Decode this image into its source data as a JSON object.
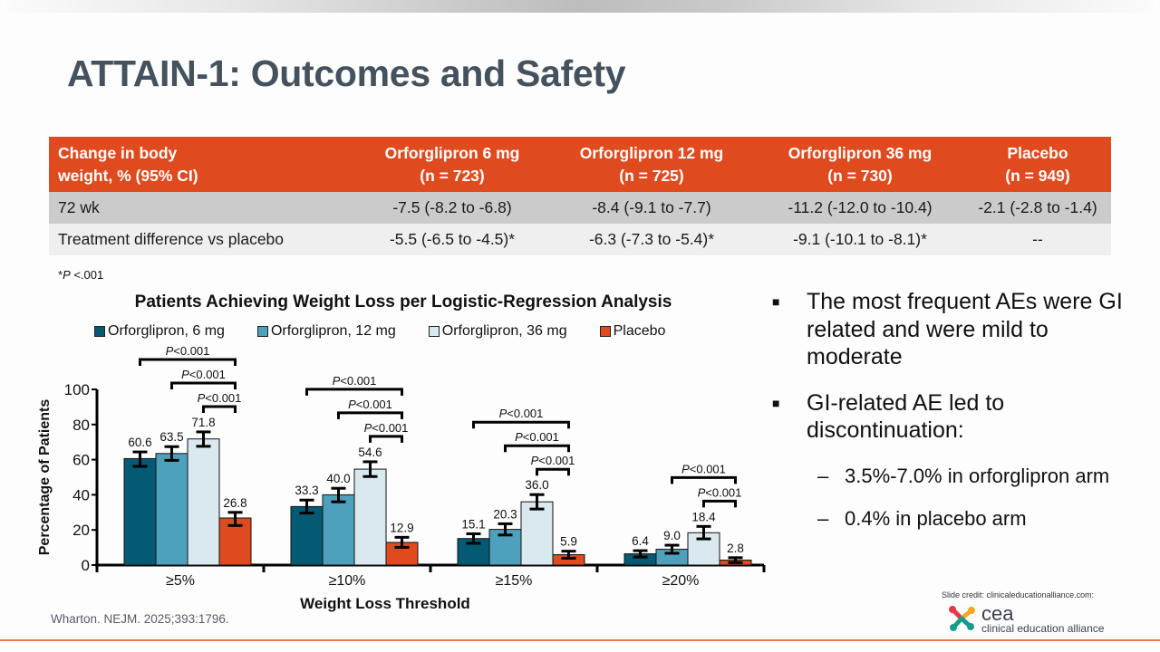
{
  "slide": {
    "title": "ATTAIN-1: Outcomes and Safety",
    "citation": "Wharton. NEJM. 2025;393:1796.",
    "credit": "Slide credit: clinicaleducationalliance.com:",
    "logo": {
      "name": "cea",
      "subtitle": "clinical education alliance"
    }
  },
  "colors": {
    "accent": "#e04a1f",
    "title": "#44525e",
    "series": [
      "#045a72",
      "#4ea1bc",
      "#d9e9ef",
      "#e04a1f"
    ]
  },
  "table": {
    "headers": [
      {
        "line1": "Change in body",
        "line2": "weight, % (95% CI)"
      },
      {
        "line1": "Orforglipron 6 mg",
        "line2": "(n = 723)"
      },
      {
        "line1": "Orforglipron 12 mg",
        "line2": "(n = 725)"
      },
      {
        "line1": "Orforglipron 36 mg",
        "line2": "(n = 730)"
      },
      {
        "line1": "Placebo",
        "line2": "(n = 949)"
      }
    ],
    "rows": [
      [
        "72 wk",
        "-7.5 (-8.2 to -6.8)",
        "-8.4 (-9.1 to -7.7)",
        "-11.2 (-12.0 to -10.4)",
        "-2.1 (-2.8 to -1.4)"
      ],
      [
        "Treatment difference vs placebo",
        "-5.5 (-6.5 to -4.5)*",
        "-6.3 (-7.3 to -5.4)*",
        "-9.1 (-10.1 to -8.1)*",
        "--"
      ]
    ],
    "footnote_symbol": "*",
    "footnote_p": "P",
    "footnote_rest": " <.001"
  },
  "bullets": [
    {
      "text": "The most frequent AEs were GI related and were mild to moderate",
      "subs": []
    },
    {
      "text": "GI-related AE led to discontinuation:",
      "subs": [
        "3.5%-7.0% in orforglipron arm",
        "0.4% in placebo arm"
      ]
    }
  ],
  "bullet_mark": "■",
  "sub_mark": "–",
  "chart_data": {
    "type": "bar",
    "title": "Patients Achieving Weight Loss per Logistic-Regression Analysis",
    "xlabel": "Weight Loss Threshold",
    "ylabel": "Percentage of Patients",
    "ylim": [
      0,
      100
    ],
    "yticks": [
      0,
      20,
      40,
      60,
      80,
      100
    ],
    "grid": false,
    "legend_position": "top",
    "categories": [
      "≥5%",
      "≥10%",
      "≥15%",
      "≥20%"
    ],
    "series": [
      {
        "name": "Orforglipron, 6 mg",
        "values": [
          60.6,
          33.3,
          15.1,
          6.4
        ],
        "ci_low": [
          56.2,
          29.6,
          12.4,
          4.6
        ],
        "ci_high": [
          64.4,
          37.0,
          17.8,
          8.2
        ]
      },
      {
        "name": "Orforglipron, 12 mg",
        "values": [
          63.5,
          40.0,
          20.3,
          9.0
        ],
        "ci_low": [
          59.6,
          36.0,
          17.1,
          6.7
        ],
        "ci_high": [
          67.4,
          43.7,
          23.5,
          11.3
        ]
      },
      {
        "name": "Orforglipron, 36 mg",
        "values": [
          71.8,
          54.6,
          36.0,
          18.4
        ],
        "ci_low": [
          67.6,
          50.4,
          31.9,
          14.9
        ],
        "ci_high": [
          75.8,
          58.8,
          40.1,
          22.0
        ]
      },
      {
        "name": "Placebo",
        "values": [
          26.8,
          12.9,
          5.9,
          2.8
        ],
        "ci_low": [
          22.5,
          10.1,
          3.9,
          1.4
        ],
        "ci_high": [
          30.0,
          15.8,
          7.9,
          4.2
        ]
      }
    ],
    "significance": [
      {
        "category": 0,
        "comparisons": [
          {
            "from": 0,
            "to": 3,
            "label": "P<0.001"
          },
          {
            "from": 1,
            "to": 3,
            "label": "P<0.001"
          },
          {
            "from": 2,
            "to": 3,
            "label": "P<0.001"
          }
        ]
      },
      {
        "category": 1,
        "comparisons": [
          {
            "from": 0,
            "to": 3,
            "label": "P<0.001"
          },
          {
            "from": 1,
            "to": 3,
            "label": "P<0.001"
          },
          {
            "from": 2,
            "to": 3,
            "label": "P<0.001"
          }
        ]
      },
      {
        "category": 2,
        "comparisons": [
          {
            "from": 0,
            "to": 3,
            "label": "P<0.001"
          },
          {
            "from": 1,
            "to": 3,
            "label": "P<0.001"
          },
          {
            "from": 2,
            "to": 3,
            "label": "P<0.001"
          }
        ]
      },
      {
        "category": 3,
        "comparisons": [
          {
            "from": 1,
            "to": 3,
            "label": "P<0.001"
          },
          {
            "from": 2,
            "to": 3,
            "label": "P<0.001"
          }
        ]
      }
    ]
  }
}
